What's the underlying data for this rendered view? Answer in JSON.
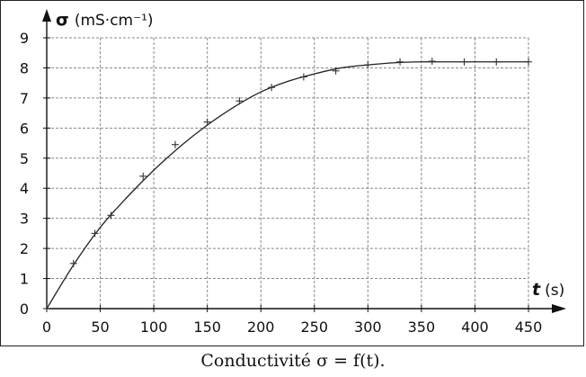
{
  "caption": "Conductivité σ = f(t).",
  "chart_data": {
    "type": "line",
    "title": "",
    "xlabel_symbol": "t",
    "xlabel_unit": "(s)",
    "ylabel_symbol": "σ",
    "ylabel_unit": "(mS·cm⁻¹)",
    "xlim": [
      0,
      450
    ],
    "ylim": [
      0,
      9
    ],
    "x_ticks": [
      0,
      50,
      100,
      150,
      200,
      250,
      300,
      350,
      400,
      450
    ],
    "y_ticks": [
      0,
      1,
      2,
      3,
      4,
      5,
      6,
      7,
      8,
      9
    ],
    "grid": true,
    "line_color": "#222222",
    "curve": {
      "x": [
        0,
        25,
        50,
        75,
        100,
        125,
        150,
        175,
        200,
        225,
        250,
        275,
        300,
        325,
        350,
        375,
        400,
        425,
        450
      ],
      "y": [
        0,
        1.45,
        2.7,
        3.7,
        4.6,
        5.4,
        6.1,
        6.7,
        7.2,
        7.55,
        7.8,
        8.0,
        8.1,
        8.17,
        8.2,
        8.2,
        8.2,
        8.2,
        8.2
      ]
    },
    "points": {
      "x": [
        0,
        25,
        45,
        60,
        90,
        120,
        150,
        180,
        210,
        240,
        270,
        300,
        330,
        360,
        390,
        420,
        450
      ],
      "y": [
        0,
        1.5,
        2.5,
        3.1,
        4.4,
        5.45,
        6.2,
        6.9,
        7.35,
        7.7,
        7.9,
        8.1,
        8.2,
        8.22,
        8.2,
        8.2,
        8.2
      ]
    }
  }
}
